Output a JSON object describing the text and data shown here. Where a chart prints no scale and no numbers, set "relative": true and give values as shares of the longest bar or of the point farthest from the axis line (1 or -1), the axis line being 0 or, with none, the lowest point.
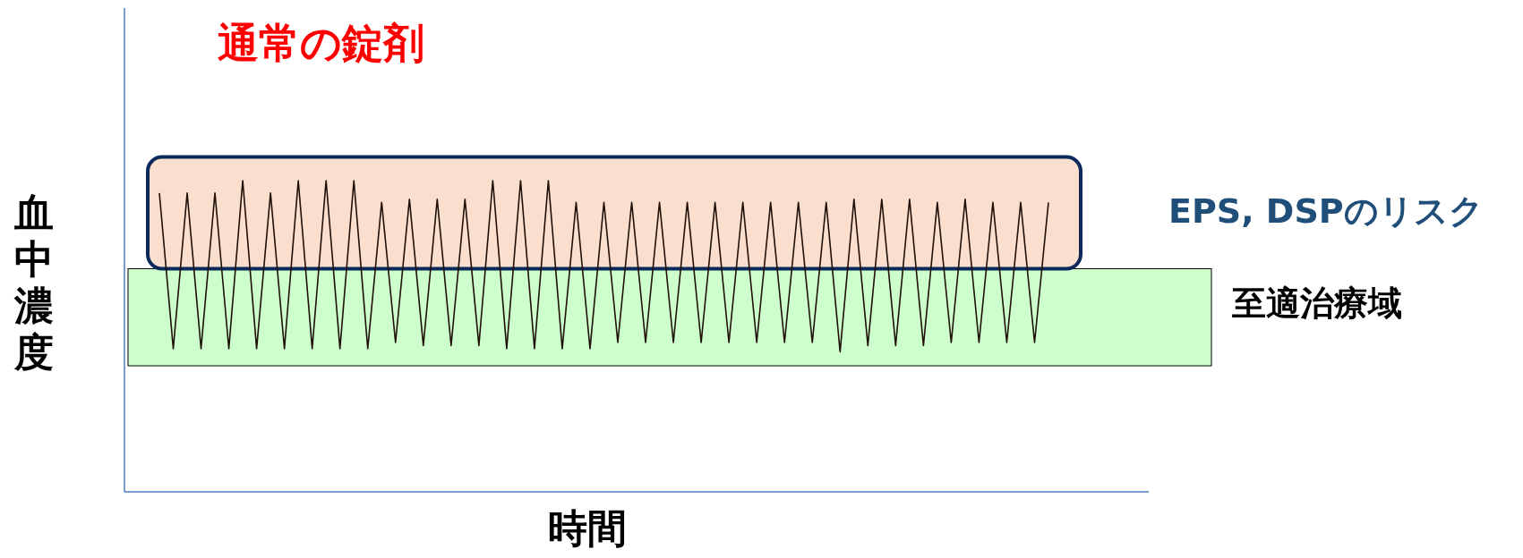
{
  "chart_data": {
    "type": "line",
    "relative": true,
    "title": "通常の錠剤",
    "xlabel": "時間",
    "ylabel": "血中濃度",
    "categories": [
      null,
      null,
      null,
      null,
      null,
      null,
      null,
      null,
      null,
      null,
      null,
      null,
      null,
      null,
      null,
      null,
      null,
      null,
      null,
      null,
      null,
      null,
      null,
      null,
      null,
      null,
      null,
      null,
      null,
      null,
      null,
      null,
      null,
      null,
      null,
      null,
      null,
      null,
      null,
      null,
      null,
      null,
      null,
      null,
      null,
      null,
      null,
      null,
      null,
      null,
      null,
      null,
      null,
      null,
      null,
      null,
      null,
      null,
      null,
      null,
      null,
      null,
      null,
      null,
      null
    ],
    "series": [
      {
        "color": "#201008",
        "values": [
          0.96,
          0.46,
          0.96,
          0.46,
          0.96,
          0.46,
          1,
          0.46,
          0.96,
          0.46,
          1,
          0.46,
          1,
          0.46,
          1,
          0.46,
          0.93,
          0.48,
          0.94,
          0.47,
          0.94,
          0.47,
          0.94,
          0.47,
          1,
          0.46,
          1,
          0.46,
          1,
          0.46,
          0.93,
          0.46,
          0.93,
          0.48,
          0.93,
          0.48,
          0.93,
          0.48,
          0.93,
          0.48,
          0.93,
          0.48,
          0.93,
          0.48,
          0.93,
          0.48,
          0.93,
          0.48,
          0.93,
          0.45,
          0.94,
          0.47,
          0.94,
          0.47,
          0.94,
          0.47,
          0.93,
          0.48,
          0.94,
          0.48,
          0.93,
          0.48,
          0.93,
          0.48,
          0.93
        ]
      }
    ],
    "bands": [
      {
        "axis": "y",
        "from": 0.405,
        "to": 0.717,
        "label": "至適治療域",
        "color": "#ccffcc"
      },
      {
        "axis": "y",
        "from": 0.717,
        "to": 1.076,
        "label": "EPS, DSPのリスク",
        "color": "#fadfce"
      }
    ]
  }
}
